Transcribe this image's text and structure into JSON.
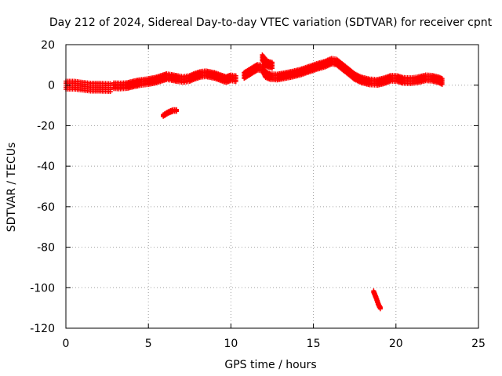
{
  "chart_data": {
    "type": "scatter",
    "title": "Day 212 of 2024, Sidereal Day-to-day VTEC variation (SDTVAR) for receiver cpnt",
    "xlabel": "GPS time / hours",
    "ylabel": "SDTVAR / TECUs",
    "xlim": [
      0,
      25
    ],
    "ylim": [
      -120,
      20
    ],
    "xticks": [
      0,
      5,
      10,
      15,
      20,
      25
    ],
    "yticks": [
      -120,
      -100,
      -80,
      -60,
      -40,
      -20,
      0,
      20
    ],
    "grid": true,
    "marker": "plus",
    "color": "#ff0000",
    "series": [
      {
        "name": "SDTVAR",
        "segments": [
          {
            "band": 2.0,
            "points": [
              [
                0,
                0
              ],
              [
                0.5,
                0
              ],
              [
                1,
                -0.5
              ],
              [
                1.5,
                -1
              ],
              [
                2,
                -1
              ],
              [
                2.7,
                -1.2
              ]
            ]
          },
          {
            "band": 1.5,
            "points": [
              [
                2.9,
                -0.3
              ],
              [
                3.3,
                -0.4
              ],
              [
                3.7,
                -0.2
              ],
              [
                4.1,
                0.6
              ],
              [
                4.5,
                1.3
              ],
              [
                5,
                1.8
              ],
              [
                5.4,
                2.4
              ],
              [
                5.8,
                3.4
              ],
              [
                6.1,
                4.2
              ],
              [
                6.4,
                3.8
              ],
              [
                6.8,
                3.2
              ],
              [
                7.1,
                2.8
              ],
              [
                7.5,
                3.3
              ],
              [
                7.8,
                4.4
              ],
              [
                8.2,
                5.4
              ],
              [
                8.5,
                5.6
              ],
              [
                9,
                4.8
              ],
              [
                9.4,
                3.6
              ],
              [
                9.7,
                2.8
              ],
              [
                10,
                3.6
              ],
              [
                10.3,
                3.2
              ]
            ]
          },
          {
            "band": 1.5,
            "points": [
              [
                10.8,
                4.8
              ],
              [
                11.2,
                6.8
              ],
              [
                11.6,
                8.8
              ],
              [
                11.9,
                8.4
              ],
              [
                12.1,
                5.2
              ],
              [
                12.4,
                4.2
              ],
              [
                12.8,
                4.0
              ],
              [
                13.2,
                4.6
              ],
              [
                13.7,
                5.4
              ],
              [
                14.2,
                6.4
              ],
              [
                14.7,
                7.8
              ],
              [
                15.2,
                9.2
              ],
              [
                15.7,
                10.4
              ],
              [
                16.1,
                11.8
              ],
              [
                16.4,
                11.4
              ],
              [
                16.8,
                8.8
              ],
              [
                17.2,
                6.2
              ],
              [
                17.5,
                4.2
              ],
              [
                17.9,
                2.6
              ],
              [
                18.4,
                1.6
              ],
              [
                18.9,
                1.4
              ],
              [
                19.3,
                2.2
              ],
              [
                19.7,
                3.4
              ],
              [
                20.1,
                3.2
              ],
              [
                20.4,
                2.4
              ],
              [
                20.9,
                2.2
              ],
              [
                21.3,
                2.6
              ],
              [
                21.8,
                3.6
              ],
              [
                22.2,
                3.4
              ],
              [
                22.6,
                2.6
              ],
              [
                22.8,
                1.8
              ]
            ]
          },
          {
            "band": 1.5,
            "points": [
              [
                11.9,
                13.5
              ],
              [
                12.2,
                10.5
              ],
              [
                12.5,
                9.8
              ]
            ]
          },
          {
            "band": 0.5,
            "points": [
              [
                5.9,
                -15
              ],
              [
                6.2,
                -13.5
              ],
              [
                6.5,
                -12.5
              ],
              [
                6.7,
                -12.5
              ]
            ]
          },
          {
            "band": 0.5,
            "points": [
              [
                18.65,
                -102
              ],
              [
                18.8,
                -105
              ],
              [
                18.95,
                -108.5
              ],
              [
                19.05,
                -110
              ]
            ]
          }
        ]
      }
    ]
  }
}
